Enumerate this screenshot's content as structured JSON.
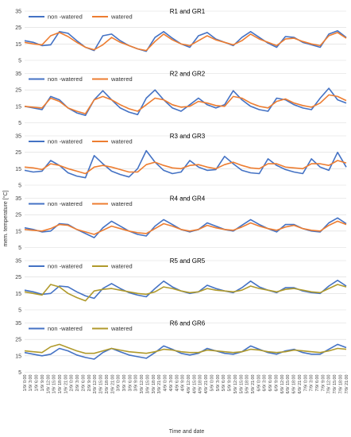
{
  "figure": {
    "xlabel": "Time and date",
    "ylabel": "mem. temperature [°C]"
  },
  "chart_data": [
    {
      "type": "line",
      "title": "R1 and GR1",
      "ylim": [
        5,
        35
      ],
      "yticks": [
        5,
        15,
        25,
        35
      ],
      "series": [
        {
          "name": "non -watered",
          "color": "#4472C4",
          "values": [
            17.0,
            16.0,
            14.0,
            14.5,
            22.5,
            21.5,
            17.0,
            13.0,
            11.0,
            20.0,
            21.0,
            17.0,
            14.0,
            12.0,
            10.5,
            19.0,
            22.5,
            18.5,
            15.0,
            13.0,
            20.0,
            22.0,
            18.0,
            16.0,
            14.0,
            19.0,
            22.5,
            19.0,
            15.5,
            13.0,
            19.5,
            19.0,
            16.0,
            14.5,
            13.0,
            21.0,
            23.0,
            19.0
          ]
        },
        {
          "name": "watered",
          "color": "#ED7D31",
          "values": [
            16.0,
            15.0,
            14.5,
            20.0,
            22.0,
            19.5,
            16.0,
            13.0,
            11.5,
            14.5,
            19.0,
            16.0,
            14.0,
            12.0,
            11.0,
            16.5,
            21.0,
            17.5,
            15.0,
            14.0,
            17.0,
            20.0,
            17.5,
            16.0,
            14.5,
            17.0,
            21.0,
            18.0,
            16.0,
            14.0,
            18.0,
            18.5,
            16.5,
            15.0,
            14.0,
            20.0,
            22.0,
            18.5
          ]
        }
      ]
    },
    {
      "type": "line",
      "title": "R2 and GR2",
      "ylim": [
        5,
        35
      ],
      "yticks": [
        5,
        15,
        25,
        35
      ],
      "series": [
        {
          "name": "non -watered",
          "color": "#4472C4",
          "values": [
            15.0,
            14.0,
            13.0,
            21.0,
            19.0,
            14.0,
            11.0,
            9.5,
            19.0,
            24.5,
            19.0,
            14.0,
            11.5,
            10.0,
            20.0,
            25.0,
            19.0,
            14.0,
            12.0,
            16.0,
            20.0,
            16.0,
            14.0,
            16.0,
            24.5,
            19.0,
            15.0,
            13.0,
            12.0,
            20.0,
            19.0,
            16.0,
            14.0,
            13.0,
            20.0,
            26.0,
            19.0,
            17.0
          ]
        },
        {
          "name": "watered",
          "color": "#ED7D31",
          "values": [
            15.0,
            14.5,
            14.0,
            20.0,
            18.0,
            14.0,
            12.0,
            10.5,
            19.0,
            21.0,
            19.0,
            16.0,
            13.5,
            12.0,
            16.0,
            20.0,
            19.0,
            16.0,
            14.5,
            15.0,
            18.0,
            17.0,
            15.5,
            15.0,
            21.0,
            20.0,
            17.0,
            15.0,
            14.0,
            18.0,
            19.5,
            17.0,
            15.5,
            14.5,
            17.0,
            22.0,
            21.0,
            18.5
          ]
        }
      ]
    },
    {
      "type": "line",
      "title": "R3 and GR3",
      "ylim": [
        5,
        35
      ],
      "yticks": [
        5,
        15,
        25,
        35
      ],
      "series": [
        {
          "name": "non -watered",
          "color": "#4472C4",
          "values": [
            14.0,
            13.0,
            13.5,
            20.0,
            17.0,
            12.5,
            10.5,
            9.5,
            23.0,
            18.0,
            13.5,
            11.5,
            10.0,
            15.0,
            26.0,
            19.0,
            14.0,
            12.0,
            13.0,
            20.0,
            16.0,
            14.0,
            14.5,
            22.5,
            18.0,
            14.0,
            12.5,
            12.0,
            21.0,
            17.0,
            14.5,
            13.0,
            12.0,
            21.0,
            16.0,
            14.0,
            25.0,
            16.0
          ]
        },
        {
          "name": "watered",
          "color": "#ED7D31",
          "values": [
            16.0,
            15.5,
            14.5,
            18.0,
            17.0,
            15.0,
            13.5,
            12.0,
            16.0,
            17.0,
            16.0,
            14.5,
            13.0,
            13.0,
            17.5,
            19.0,
            17.0,
            15.5,
            15.0,
            17.0,
            17.5,
            16.0,
            15.0,
            17.5,
            19.0,
            17.0,
            15.5,
            15.0,
            18.0,
            18.0,
            16.0,
            15.5,
            15.0,
            18.0,
            18.0,
            17.0,
            20.0,
            18.5
          ]
        }
      ]
    },
    {
      "type": "line",
      "title": "R4 and GR4",
      "ylim": [
        5,
        35
      ],
      "yticks": [
        5,
        15,
        25,
        35
      ],
      "series": [
        {
          "name": "non -watered",
          "color": "#4472C4",
          "values": [
            17.0,
            16.0,
            14.5,
            15.0,
            19.5,
            19.0,
            16.0,
            13.5,
            11.0,
            17.0,
            21.0,
            18.0,
            15.0,
            13.0,
            12.0,
            18.0,
            22.0,
            19.0,
            16.0,
            14.5,
            16.0,
            20.0,
            18.0,
            16.0,
            15.0,
            18.5,
            22.0,
            19.0,
            16.5,
            14.5,
            19.0,
            19.0,
            16.5,
            15.0,
            14.5,
            20.0,
            23.0,
            19.5
          ]
        },
        {
          "name": "watered",
          "color": "#ED7D31",
          "values": [
            16.0,
            15.5,
            15.0,
            16.5,
            19.0,
            18.5,
            16.0,
            14.5,
            13.0,
            15.5,
            18.0,
            16.5,
            15.0,
            14.0,
            13.5,
            16.5,
            19.5,
            18.0,
            16.0,
            15.0,
            16.0,
            18.5,
            17.0,
            16.0,
            15.5,
            17.5,
            20.0,
            18.0,
            16.5,
            15.5,
            17.5,
            18.5,
            16.5,
            15.5,
            15.0,
            18.5,
            21.0,
            19.0
          ]
        }
      ]
    },
    {
      "type": "line",
      "title": "R5 and GR5",
      "ylim": [
        5,
        35
      ],
      "yticks": [
        5,
        15,
        25,
        35
      ],
      "series": [
        {
          "name": "non -watered",
          "color": "#4472C4",
          "values": [
            17.0,
            16.0,
            14.5,
            15.0,
            19.5,
            19.0,
            16.0,
            13.5,
            12.0,
            18.0,
            21.0,
            18.0,
            15.5,
            14.0,
            13.0,
            18.0,
            22.5,
            19.0,
            16.5,
            15.0,
            16.0,
            20.0,
            18.0,
            16.5,
            15.5,
            18.5,
            22.5,
            19.0,
            17.0,
            15.5,
            18.5,
            18.5,
            16.5,
            15.5,
            15.0,
            19.5,
            23.0,
            19.5
          ]
        },
        {
          "name": "watered",
          "color": "#B09A2C",
          "values": [
            16.0,
            15.0,
            14.0,
            20.5,
            19.0,
            15.0,
            12.5,
            10.5,
            16.5,
            17.5,
            18.0,
            17.0,
            16.0,
            15.0,
            14.5,
            16.0,
            19.0,
            18.0,
            16.5,
            15.5,
            16.0,
            18.0,
            17.0,
            16.5,
            16.0,
            17.0,
            19.5,
            18.0,
            17.0,
            16.0,
            17.5,
            18.0,
            17.0,
            16.0,
            15.5,
            18.0,
            20.5,
            19.0
          ]
        }
      ]
    },
    {
      "type": "line",
      "title": "R6 and GR6",
      "ylim": [
        5,
        35
      ],
      "yticks": [
        5,
        15,
        25,
        35
      ],
      "series": [
        {
          "name": "non -watered",
          "color": "#4472C4",
          "values": [
            17.0,
            16.0,
            15.0,
            16.0,
            19.5,
            18.0,
            15.5,
            14.0,
            13.0,
            17.0,
            19.5,
            17.5,
            15.5,
            14.5,
            13.5,
            17.0,
            21.0,
            19.0,
            16.5,
            15.5,
            16.5,
            19.5,
            18.0,
            16.5,
            16.0,
            17.5,
            21.0,
            19.0,
            17.0,
            16.0,
            18.0,
            19.0,
            17.0,
            16.0,
            16.0,
            19.0,
            22.0,
            20.0
          ]
        },
        {
          "name": "watered",
          "color": "#B09A2C",
          "values": [
            18.0,
            17.5,
            17.0,
            20.5,
            22.0,
            20.0,
            18.0,
            16.5,
            16.5,
            18.0,
            19.5,
            18.5,
            17.5,
            17.0,
            16.5,
            17.5,
            19.0,
            18.5,
            17.5,
            17.0,
            17.0,
            18.5,
            18.0,
            17.5,
            17.0,
            17.5,
            19.0,
            18.5,
            17.5,
            17.0,
            17.5,
            18.5,
            18.0,
            17.5,
            17.0,
            18.0,
            19.5,
            19.0
          ]
        }
      ]
    }
  ],
  "x_categories": [
    "1/9/ 0:00",
    "1/9/ 3:00",
    "1/9/ 6:00",
    "1/9/ 9:00",
    "1/9/ 12:00",
    "1/9/ 15:00",
    "1/9/ 18:00",
    "1/9/ 21:00",
    "2/9/ 0:00",
    "2/9/ 3:00",
    "2/9/ 6:00",
    "2/9/ 9:00",
    "2/9/ 12:00",
    "2/9/ 15:00",
    "2/9/ 18:00",
    "2/9/ 21:00",
    "3/9/ 0:00",
    "3/9/ 3:00",
    "3/9/ 6:00",
    "3/9/ 9:00",
    "3/9/ 12:00",
    "3/9/ 15:00",
    "3/9/ 18:00",
    "3/9/ 21:00",
    "4/9/ 0:00",
    "4/9/ 3:00",
    "4/9/ 6:00",
    "4/9/ 9:00",
    "4/9/ 12:00",
    "4/9/ 15:00",
    "4/9/ 18:00",
    "4/9/ 21:00",
    "5/9/ 0:00",
    "5/9/ 3:00",
    "5/9/ 6:00",
    "5/9/ 9:00",
    "5/9/ 12:00",
    "5/9/ 15:00",
    "5/9/ 18:00",
    "5/9/ 21:00",
    "6/9/ 0:00",
    "6/9/ 3:00",
    "6/9/ 6:00",
    "6/9/ 9:00",
    "6/9/ 12:00",
    "6/9/ 15:00",
    "6/9/ 18:00",
    "6/9/ 21:00",
    "7/9/ 0:00",
    "7/9/ 3:00",
    "7/9/ 6:00",
    "7/9/ 9:00",
    "7/9/ 12:00",
    "7/9/ 15:00",
    "7/9/ 18:00",
    "7/9/ 21:00"
  ]
}
